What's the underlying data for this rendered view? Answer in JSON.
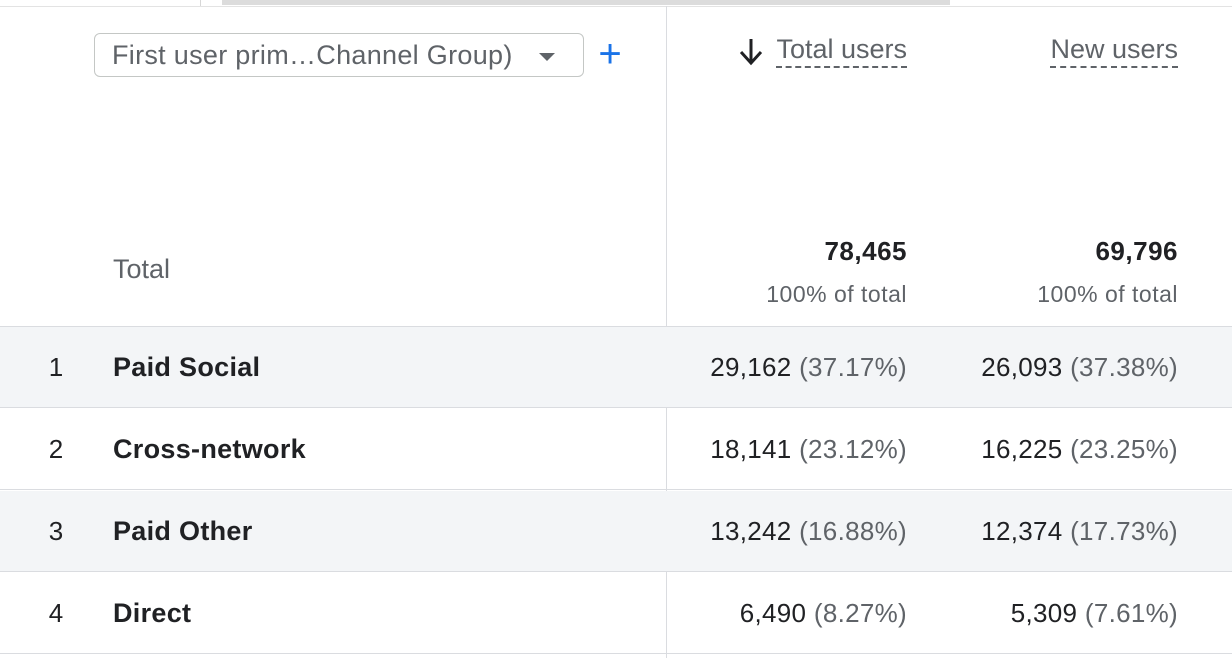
{
  "dimension_selector": {
    "label": "First user prim…Channel Group)",
    "add_icon": "plus-icon",
    "dropdown_icon": "caret-down-icon"
  },
  "columns": {
    "total_users": {
      "label": "Total users",
      "sort_icon": "arrow-down-icon"
    },
    "new_users": {
      "label": "New users"
    }
  },
  "totals": {
    "label": "Total",
    "total_users": "78,465",
    "total_users_pct": "100% of total",
    "new_users": "69,796",
    "new_users_pct": "100% of total"
  },
  "rows": [
    {
      "rank": "1",
      "channel": "Paid Social",
      "total_users": "29,162",
      "total_users_pct": "(37.17%)",
      "new_users": "26,093",
      "new_users_pct": "(37.38%)"
    },
    {
      "rank": "2",
      "channel": "Cross-network",
      "total_users": "18,141",
      "total_users_pct": "(23.12%)",
      "new_users": "16,225",
      "new_users_pct": "(23.25%)"
    },
    {
      "rank": "3",
      "channel": "Paid Other",
      "total_users": "13,242",
      "total_users_pct": "(16.88%)",
      "new_users": "12,374",
      "new_users_pct": "(17.73%)"
    },
    {
      "rank": "4",
      "channel": "Direct",
      "total_users": "6,490",
      "total_users_pct": "(8.27%)",
      "new_users": "5,309",
      "new_users_pct": "(7.61%)"
    }
  ],
  "colors": {
    "accent": "#1a73e8",
    "row_shade": "#f3f5f7",
    "border": "#dadce0",
    "muted_text": "#5f6368"
  }
}
